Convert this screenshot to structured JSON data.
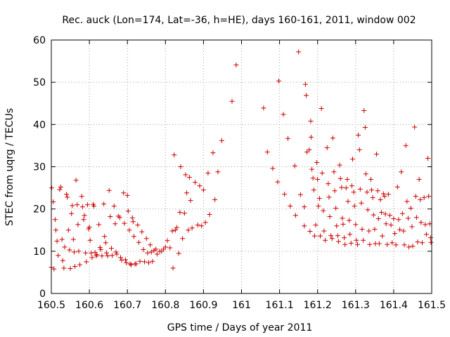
{
  "chart_data": {
    "type": "scatter",
    "title": "Rec. auck (Lon=174, Lat=-36, h=HE), days 160-161, 2011, window 002",
    "xlabel": "GPS time / Days of year 2011",
    "ylabel": "STEC from uqrg / TECUs",
    "xlim": [
      160.5,
      161.5
    ],
    "ylim": [
      0,
      60
    ],
    "xticks": [
      160.5,
      160.6,
      160.7,
      160.8,
      160.9,
      161,
      161.1,
      161.2,
      161.3,
      161.4,
      161.5
    ],
    "xtick_labels": [
      "160.5",
      "160.6",
      "160.7",
      "160.8",
      "160.9",
      "161",
      "161.1",
      "161.2",
      "161.3",
      "161.4",
      "161.5"
    ],
    "yticks": [
      0,
      10,
      20,
      30,
      40,
      50,
      60
    ],
    "ytick_labels": [
      "0",
      "10",
      "20",
      "30",
      "40",
      "50",
      "60"
    ],
    "grid": true,
    "marker": "+",
    "color": "#cc0000",
    "points": [
      [
        160.501,
        25.0
      ],
      [
        160.505,
        21.7
      ],
      [
        160.51,
        17.5
      ],
      [
        160.512,
        15.0
      ],
      [
        160.515,
        12.4
      ],
      [
        160.5,
        6.2
      ],
      [
        160.507,
        5.8
      ],
      [
        160.518,
        9.0
      ],
      [
        160.522,
        24.6
      ],
      [
        160.525,
        25.2
      ],
      [
        160.528,
        12.8
      ],
      [
        160.53,
        7.8
      ],
      [
        160.533,
        6.0
      ],
      [
        160.535,
        11.0
      ],
      [
        160.54,
        23.5
      ],
      [
        160.542,
        22.8
      ],
      [
        160.545,
        15.0
      ],
      [
        160.548,
        10.3
      ],
      [
        160.55,
        5.9
      ],
      [
        160.553,
        18.9
      ],
      [
        160.555,
        20.8
      ],
      [
        160.558,
        12.8
      ],
      [
        160.56,
        9.8
      ],
      [
        160.562,
        6.4
      ],
      [
        160.565,
        26.8
      ],
      [
        160.568,
        21.0
      ],
      [
        160.57,
        16.3
      ],
      [
        160.572,
        10.0
      ],
      [
        160.575,
        6.8
      ],
      [
        160.58,
        23.0
      ],
      [
        160.582,
        20.5
      ],
      [
        160.585,
        17.5
      ],
      [
        160.587,
        18.5
      ],
      [
        160.59,
        9.6
      ],
      [
        160.592,
        7.5
      ],
      [
        160.595,
        21.0
      ],
      [
        160.598,
        15.3
      ],
      [
        160.6,
        15.7
      ],
      [
        160.602,
        12.6
      ],
      [
        160.605,
        9.6
      ],
      [
        160.607,
        8.5
      ],
      [
        160.61,
        21.1
      ],
      [
        160.612,
        20.7
      ],
      [
        160.615,
        9.7
      ],
      [
        160.618,
        8.9
      ],
      [
        160.62,
        9.2
      ],
      [
        160.625,
        16.3
      ],
      [
        160.628,
        10.9
      ],
      [
        160.63,
        10.4
      ],
      [
        160.633,
        8.9
      ],
      [
        160.638,
        21.2
      ],
      [
        160.64,
        13.5
      ],
      [
        160.643,
        12.0
      ],
      [
        160.645,
        9.6
      ],
      [
        160.648,
        8.9
      ],
      [
        160.652,
        24.4
      ],
      [
        160.655,
        18.2
      ],
      [
        160.658,
        10.7
      ],
      [
        160.66,
        9.0
      ],
      [
        160.665,
        20.7
      ],
      [
        160.668,
        16.5
      ],
      [
        160.67,
        9.8
      ],
      [
        160.672,
        9.3
      ],
      [
        160.676,
        18.3
      ],
      [
        160.68,
        18.0
      ],
      [
        160.682,
        8.5
      ],
      [
        160.685,
        7.9
      ],
      [
        160.69,
        23.8
      ],
      [
        160.692,
        16.6
      ],
      [
        160.695,
        8.0
      ],
      [
        160.697,
        7.3
      ],
      [
        160.7,
        23.2
      ],
      [
        160.702,
        19.5
      ],
      [
        160.705,
        15.0
      ],
      [
        160.707,
        7.0
      ],
      [
        160.71,
        6.8
      ],
      [
        160.713,
        17.9
      ],
      [
        160.715,
        17.0
      ],
      [
        160.717,
        13.5
      ],
      [
        160.72,
        7.0
      ],
      [
        160.723,
        7.0
      ],
      [
        160.727,
        16.2
      ],
      [
        160.73,
        12.1
      ],
      [
        160.733,
        7.6
      ],
      [
        160.738,
        14.6
      ],
      [
        160.742,
        10.4
      ],
      [
        160.745,
        7.5
      ],
      [
        160.75,
        13.0
      ],
      [
        160.753,
        9.6
      ],
      [
        160.756,
        7.3
      ],
      [
        160.76,
        11.5
      ],
      [
        160.763,
        9.8
      ],
      [
        160.766,
        7.6
      ],
      [
        160.77,
        10.2
      ],
      [
        160.775,
        10.5
      ],
      [
        160.778,
        9.3
      ],
      [
        160.785,
        10.0
      ],
      [
        160.79,
        10.0
      ],
      [
        160.795,
        10.5
      ],
      [
        160.8,
        11.0
      ],
      [
        160.805,
        12.5
      ],
      [
        160.812,
        10.8
      ],
      [
        160.818,
        14.8
      ],
      [
        160.82,
        6.0
      ],
      [
        160.823,
        32.8
      ],
      [
        160.826,
        15.0
      ],
      [
        160.83,
        15.6
      ],
      [
        160.835,
        9.5
      ],
      [
        160.838,
        19.2
      ],
      [
        160.84,
        30.0
      ],
      [
        160.845,
        13.0
      ],
      [
        160.85,
        19.0
      ],
      [
        160.853,
        28.1
      ],
      [
        160.856,
        23.8
      ],
      [
        160.86,
        15.0
      ],
      [
        160.863,
        27.5
      ],
      [
        160.866,
        22.0
      ],
      [
        160.87,
        15.5
      ],
      [
        160.878,
        26.3
      ],
      [
        160.885,
        16.2
      ],
      [
        160.89,
        25.5
      ],
      [
        160.895,
        16.0
      ],
      [
        160.9,
        24.5
      ],
      [
        160.905,
        16.8
      ],
      [
        160.912,
        28.5
      ],
      [
        160.916,
        18.7
      ],
      [
        160.925,
        33.3
      ],
      [
        160.93,
        22.2
      ],
      [
        160.938,
        28.8
      ],
      [
        160.948,
        36.2
      ],
      [
        160.975,
        45.5
      ],
      [
        160.986,
        54.1
      ],
      [
        161.058,
        43.9
      ],
      [
        161.068,
        33.5
      ],
      [
        161.082,
        29.6
      ],
      [
        161.095,
        26.4
      ],
      [
        161.098,
        50.3
      ],
      [
        161.11,
        42.4
      ],
      [
        161.113,
        23.5
      ],
      [
        161.122,
        36.7
      ],
      [
        161.128,
        20.7
      ],
      [
        161.14,
        30.2
      ],
      [
        161.142,
        18.5
      ],
      [
        161.15,
        57.2
      ],
      [
        161.155,
        23.4
      ],
      [
        161.165,
        16.0
      ],
      [
        161.165,
        20.5
      ],
      [
        161.168,
        49.5
      ],
      [
        161.17,
        46.9
      ],
      [
        161.172,
        33.5
      ],
      [
        161.178,
        34.0
      ],
      [
        161.18,
        14.7
      ],
      [
        161.182,
        40.8
      ],
      [
        161.183,
        37.0
      ],
      [
        161.185,
        29.4
      ],
      [
        161.188,
        27.3
      ],
      [
        161.19,
        24.5
      ],
      [
        161.192,
        13.6
      ],
      [
        161.195,
        16.2
      ],
      [
        161.198,
        31.0
      ],
      [
        161.2,
        27.0
      ],
      [
        161.202,
        20.7
      ],
      [
        161.205,
        22.5
      ],
      [
        161.207,
        13.6
      ],
      [
        161.21,
        43.8
      ],
      [
        161.212,
        28.5
      ],
      [
        161.215,
        19.6
      ],
      [
        161.217,
        14.8
      ],
      [
        161.22,
        12.6
      ],
      [
        161.225,
        34.5
      ],
      [
        161.228,
        26.0
      ],
      [
        161.23,
        22.8
      ],
      [
        161.232,
        18.2
      ],
      [
        161.235,
        13.7
      ],
      [
        161.238,
        13.0
      ],
      [
        161.24,
        36.8
      ],
      [
        161.243,
        28.8
      ],
      [
        161.245,
        24.3
      ],
      [
        161.248,
        20.2
      ],
      [
        161.25,
        16.0
      ],
      [
        161.253,
        13.7
      ],
      [
        161.255,
        12.3
      ],
      [
        161.258,
        30.4
      ],
      [
        161.26,
        27.2
      ],
      [
        161.263,
        25.1
      ],
      [
        161.265,
        17.8
      ],
      [
        161.267,
        16.4
      ],
      [
        161.27,
        13.2
      ],
      [
        161.272,
        11.6
      ],
      [
        161.275,
        25.0
      ],
      [
        161.278,
        27.0
      ],
      [
        161.28,
        21.8
      ],
      [
        161.283,
        17.3
      ],
      [
        161.285,
        14.0
      ],
      [
        161.288,
        11.9
      ],
      [
        161.29,
        25.5
      ],
      [
        161.292,
        31.8
      ],
      [
        161.295,
        24.0
      ],
      [
        161.297,
        20.7
      ],
      [
        161.3,
        16.3
      ],
      [
        161.302,
        12.6
      ],
      [
        161.305,
        11.6
      ],
      [
        161.307,
        37.5
      ],
      [
        161.31,
        34.0
      ],
      [
        161.312,
        24.7
      ],
      [
        161.315,
        21.4
      ],
      [
        161.317,
        15.2
      ],
      [
        161.32,
        12.6
      ],
      [
        161.322,
        43.3
      ],
      [
        161.325,
        39.3
      ],
      [
        161.327,
        28.3
      ],
      [
        161.33,
        24.0
      ],
      [
        161.332,
        19.8
      ],
      [
        161.335,
        14.8
      ],
      [
        161.337,
        11.6
      ],
      [
        161.34,
        27.0
      ],
      [
        161.342,
        24.5
      ],
      [
        161.345,
        22.7
      ],
      [
        161.347,
        18.6
      ],
      [
        161.35,
        15.2
      ],
      [
        161.352,
        11.8
      ],
      [
        161.355,
        33.0
      ],
      [
        161.358,
        24.3
      ],
      [
        161.36,
        17.7
      ],
      [
        161.362,
        11.8
      ],
      [
        161.365,
        22.2
      ],
      [
        161.368,
        19.2
      ],
      [
        161.37,
        13.6
      ],
      [
        161.373,
        23.6
      ],
      [
        161.376,
        23.0
      ],
      [
        161.378,
        18.8
      ],
      [
        161.38,
        16.5
      ],
      [
        161.383,
        11.6
      ],
      [
        161.386,
        23.5
      ],
      [
        161.39,
        18.5
      ],
      [
        161.393,
        16.2
      ],
      [
        161.396,
        12.0
      ],
      [
        161.4,
        17.7
      ],
      [
        161.403,
        14.2
      ],
      [
        161.406,
        11.5
      ],
      [
        161.41,
        25.2
      ],
      [
        161.413,
        17.5
      ],
      [
        161.416,
        15.1
      ],
      [
        161.42,
        28.8
      ],
      [
        161.423,
        18.9
      ],
      [
        161.426,
        14.8
      ],
      [
        161.428,
        11.5
      ],
      [
        161.432,
        35.0
      ],
      [
        161.435,
        21.8
      ],
      [
        161.438,
        17.8
      ],
      [
        161.44,
        11.0
      ],
      [
        161.445,
        20.2
      ],
      [
        161.448,
        15.8
      ],
      [
        161.45,
        11.2
      ],
      [
        161.455,
        39.4
      ],
      [
        161.458,
        23.0
      ],
      [
        161.46,
        18.0
      ],
      [
        161.463,
        12.2
      ],
      [
        161.467,
        27.0
      ],
      [
        161.47,
        22.2
      ],
      [
        161.472,
        16.8
      ],
      [
        161.475,
        12.0
      ],
      [
        161.48,
        22.7
      ],
      [
        161.483,
        16.3
      ],
      [
        161.486,
        14.0
      ],
      [
        161.49,
        32.0
      ],
      [
        161.492,
        23.0
      ],
      [
        161.495,
        16.5
      ],
      [
        161.497,
        13.2
      ],
      [
        161.498,
        12.1
      ]
    ]
  }
}
